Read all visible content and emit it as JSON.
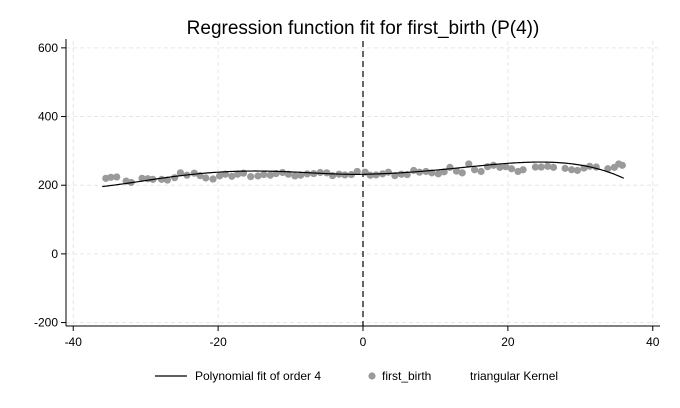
{
  "chart_data": {
    "type": "scatter",
    "title": "Regression function fit for first_birth (P(4))",
    "xlabel": "",
    "ylabel": "",
    "xlim": [
      -41,
      41
    ],
    "ylim": [
      -210,
      620
    ],
    "x_ticks": [
      "-40",
      "-20",
      "0",
      "20",
      "40"
    ],
    "y_ticks": [
      "600",
      "400",
      "200",
      "0",
      "-200"
    ],
    "grid": true,
    "cutoff": 0,
    "legend": {
      "position": "bottom",
      "entries": [
        "Polynomial fit of order 4",
        "first_birth",
        "triangular Kernel"
      ]
    },
    "series": [
      {
        "name": "first_birth",
        "kind": "scatter",
        "points": [
          [
            -35.5,
            220
          ],
          [
            -34.8,
            223
          ],
          [
            -34.0,
            224
          ],
          [
            -32.7,
            212
          ],
          [
            -32.0,
            208
          ],
          [
            -30.5,
            220
          ],
          [
            -29.7,
            219
          ],
          [
            -29.0,
            217
          ],
          [
            -27.8,
            217
          ],
          [
            -27.0,
            215
          ],
          [
            -26.0,
            222
          ],
          [
            -25.2,
            236
          ],
          [
            -24.3,
            229
          ],
          [
            -23.3,
            235
          ],
          [
            -22.5,
            228
          ],
          [
            -21.7,
            221
          ],
          [
            -20.7,
            218
          ],
          [
            -19.8,
            227
          ],
          [
            -19.0,
            232
          ],
          [
            -18.1,
            226
          ],
          [
            -17.3,
            232
          ],
          [
            -16.5,
            235
          ],
          [
            -15.5,
            225
          ],
          [
            -14.5,
            227
          ],
          [
            -13.7,
            231
          ],
          [
            -12.8,
            229
          ],
          [
            -12.0,
            234
          ],
          [
            -11.1,
            237
          ],
          [
            -10.3,
            232
          ],
          [
            -9.4,
            227
          ],
          [
            -8.6,
            229
          ],
          [
            -7.7,
            233
          ],
          [
            -6.8,
            234
          ],
          [
            -5.9,
            237
          ],
          [
            -5.0,
            236
          ],
          [
            -4.2,
            228
          ],
          [
            -3.3,
            232
          ],
          [
            -2.5,
            230
          ],
          [
            -1.6,
            231
          ],
          [
            -0.8,
            240
          ],
          [
            0.3,
            238
          ],
          [
            1.0,
            229
          ],
          [
            1.8,
            230
          ],
          [
            2.7,
            233
          ],
          [
            3.5,
            238
          ],
          [
            4.4,
            228
          ],
          [
            5.3,
            232
          ],
          [
            6.1,
            231
          ],
          [
            7.0,
            243
          ],
          [
            7.8,
            238
          ],
          [
            8.7,
            240
          ],
          [
            9.5,
            236
          ],
          [
            10.4,
            233
          ],
          [
            11.2,
            239
          ],
          [
            12.0,
            252
          ],
          [
            12.9,
            241
          ],
          [
            13.7,
            236
          ],
          [
            14.6,
            262
          ],
          [
            15.4,
            245
          ],
          [
            16.3,
            240
          ],
          [
            17.2,
            254
          ],
          [
            18.0,
            258
          ],
          [
            18.9,
            252
          ],
          [
            19.7,
            254
          ],
          [
            20.5,
            248
          ],
          [
            21.4,
            240
          ],
          [
            22.1,
            245
          ],
          [
            23.8,
            253
          ],
          [
            24.6,
            253
          ],
          [
            25.5,
            255
          ],
          [
            26.3,
            252
          ],
          [
            27.9,
            249
          ],
          [
            28.8,
            245
          ],
          [
            29.6,
            243
          ],
          [
            30.5,
            250
          ],
          [
            31.3,
            255
          ],
          [
            32.2,
            253
          ],
          [
            33.8,
            248
          ],
          [
            34.7,
            252
          ],
          [
            35.3,
            262
          ],
          [
            35.8,
            258
          ]
        ]
      },
      {
        "name": "Polynomial fit of order 4",
        "kind": "line",
        "segments": [
          {
            "x_range": [
              -36,
              0
            ],
            "coeffs": [
              231.8,
              0.41,
              0.22,
              0.0125,
              0.000165
            ]
          },
          {
            "x_range": [
              0,
              36
            ],
            "coeffs": [
              231.8,
              0.4,
              0.08,
              0.0012,
              -0.0001105
            ]
          }
        ]
      }
    ]
  }
}
